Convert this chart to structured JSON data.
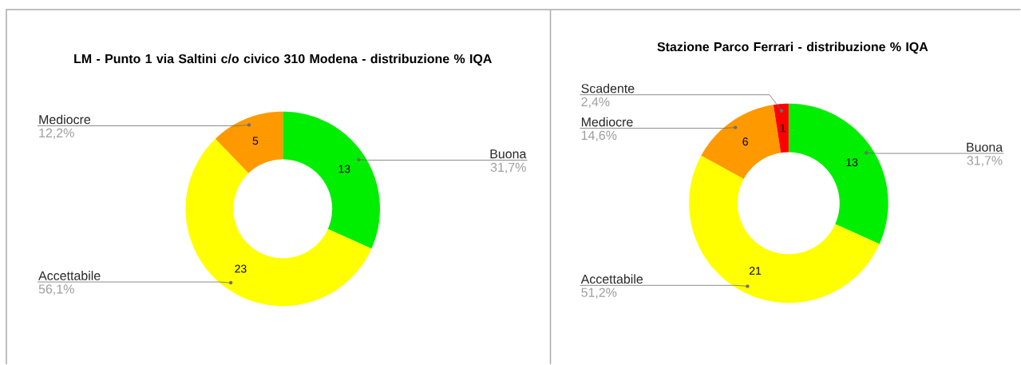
{
  "chart_data": [
    {
      "type": "donut",
      "title": "LM - Punto 1 via Saltini c/o civico 310 Modena  - distribuzione % IQA",
      "categories": [
        "Buona",
        "Accettabile",
        "Mediocre"
      ],
      "values": [
        13,
        23,
        5
      ],
      "colors": [
        "#00ee00",
        "#ffff00",
        "#ff9900"
      ],
      "data_labels": true,
      "annotations": [
        "31,7%",
        "56,1%",
        "12,2%"
      ]
    },
    {
      "type": "donut",
      "title": "Stazione Parco Ferrari - distribuzione % IQA",
      "categories": [
        "Buona",
        "Accettabile",
        "Mediocre",
        "Scadente"
      ],
      "values": [
        13,
        21,
        6,
        1
      ],
      "colors": [
        "#00ee00",
        "#ffff00",
        "#ff9900",
        "#ff0000"
      ],
      "data_labels": true,
      "annotations": [
        "31,7%",
        "51,2%",
        "14,6%",
        "2,4%"
      ]
    }
  ]
}
